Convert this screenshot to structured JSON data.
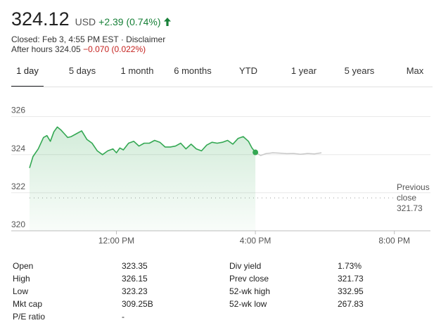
{
  "quote": {
    "price": "324.12",
    "currency": "USD",
    "change": "+2.39 (0.74%)",
    "closed_text": "Closed: Feb 3, 4:55 PM EST · Disclaimer",
    "after_hours_label": "After hours 324.05",
    "after_hours_change": "−0.070 (0.022%)"
  },
  "tabs": [
    "1 day",
    "5 days",
    "1 month",
    "6 months",
    "YTD",
    "1 year",
    "5 years",
    "Max"
  ],
  "active_tab": "1 day",
  "colors": {
    "positive": "#188038",
    "negative": "#c5221f",
    "line": "#34a853",
    "after_hours_line": "#c8c8c8"
  },
  "chart_data": {
    "type": "area",
    "y_ticks": [
      "326",
      "324",
      "322",
      "320"
    ],
    "ylim": [
      320,
      326.8
    ],
    "x_ticks": [
      "12:00 PM",
      "4:00 PM",
      "8:00 PM"
    ],
    "previous_close_label": [
      "Previous",
      "close",
      "321.73"
    ],
    "previous_close": 321.73,
    "session_hours": [
      9.5,
      16
    ],
    "after_hours_range": [
      16,
      20
    ],
    "series": [
      {
        "x": [
          9.5,
          9.6,
          9.75,
          9.9,
          10.0,
          10.1,
          10.2,
          10.3,
          10.4,
          10.5,
          10.6,
          10.7,
          10.85,
          11.0,
          11.15,
          11.3,
          11.45,
          11.6,
          11.75,
          11.9,
          12.0,
          12.1,
          12.2,
          12.35,
          12.5,
          12.65,
          12.8,
          12.95,
          13.1,
          13.25,
          13.4,
          13.55,
          13.7,
          13.85,
          14.0,
          14.15,
          14.3,
          14.45,
          14.6,
          14.75,
          14.9,
          15.05,
          15.2,
          15.35,
          15.5,
          15.65,
          15.8,
          15.9,
          16.0
        ],
        "y": [
          323.3,
          323.9,
          324.3,
          324.9,
          325.0,
          324.7,
          325.2,
          325.45,
          325.3,
          325.1,
          324.9,
          324.95,
          325.1,
          325.25,
          324.8,
          324.6,
          324.2,
          324.0,
          324.2,
          324.3,
          324.1,
          324.35,
          324.25,
          324.6,
          324.7,
          324.45,
          324.6,
          324.6,
          324.75,
          324.65,
          324.4,
          324.4,
          324.45,
          324.6,
          324.3,
          324.55,
          324.3,
          324.2,
          324.5,
          324.65,
          324.6,
          324.65,
          324.75,
          324.55,
          324.85,
          324.95,
          324.7,
          324.35,
          324.12
        ]
      },
      {
        "x": [
          16.0,
          16.15,
          16.3,
          16.5,
          16.7,
          16.9,
          17.1,
          17.3,
          17.5,
          17.7,
          17.9
        ],
        "y": [
          324.12,
          323.95,
          324.05,
          324.1,
          324.08,
          324.05,
          324.06,
          324.02,
          324.06,
          324.04,
          324.1
        ]
      }
    ]
  },
  "stats": [
    [
      {
        "label": "Open",
        "value": "323.35"
      },
      {
        "label": "Div yield",
        "value": "1.73%"
      }
    ],
    [
      {
        "label": "High",
        "value": "326.15"
      },
      {
        "label": "Prev close",
        "value": "321.73"
      }
    ],
    [
      {
        "label": "Low",
        "value": "323.23"
      },
      {
        "label": "52-wk high",
        "value": "332.95"
      }
    ],
    [
      {
        "label": "Mkt cap",
        "value": "309.25B"
      },
      {
        "label": "52-wk low",
        "value": "267.83"
      }
    ],
    [
      {
        "label": "P/E ratio",
        "value": "-"
      }
    ]
  ]
}
